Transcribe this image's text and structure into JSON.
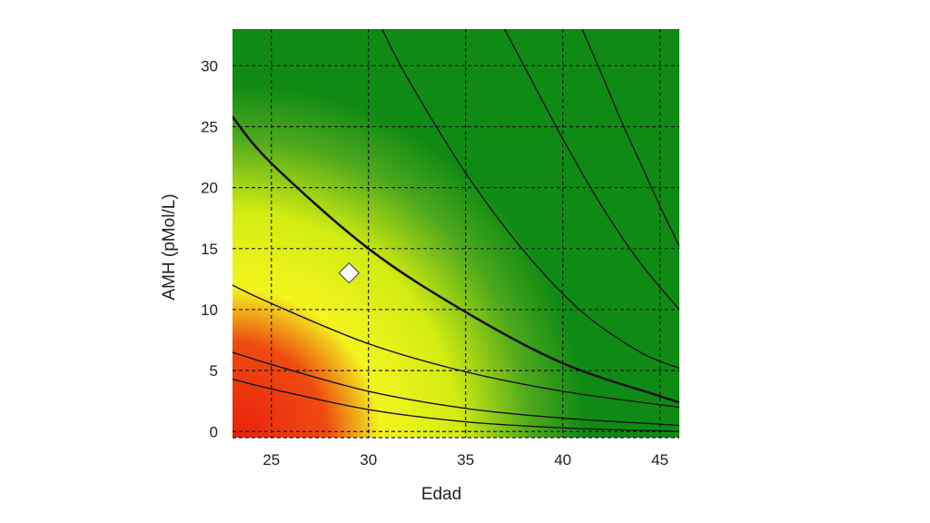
{
  "chart_data": {
    "type": "line",
    "title": "",
    "xlabel": "Edad",
    "ylabel": "AMH (pMol/L)",
    "xlim": [
      23,
      46
    ],
    "ylim": [
      -0.5,
      33
    ],
    "xticks": [
      25,
      30,
      35,
      40,
      45
    ],
    "yticks": [
      0,
      5,
      10,
      15,
      20,
      25,
      30
    ],
    "grid": true,
    "grid_style": "dashed",
    "background": "gradient",
    "background_colors": {
      "low": "#e8200c",
      "mid": "#f3f51e",
      "high": "#0f8a14"
    },
    "series": [
      {
        "x": [
          23,
          25,
          30,
          35,
          40,
          45,
          46
        ],
        "y": [
          4.3,
          3.5,
          1.8,
          0.8,
          0.3,
          0.05,
          0.0
        ]
      },
      {
        "x": [
          23,
          25,
          30,
          35,
          40,
          45,
          46
        ],
        "y": [
          6.5,
          5.5,
          3.3,
          1.9,
          1.1,
          0.6,
          0.5
        ]
      },
      {
        "x": [
          23,
          25,
          30,
          35,
          40,
          45,
          46
        ],
        "y": [
          12.0,
          10.5,
          7.2,
          4.9,
          3.3,
          2.2,
          2.0
        ]
      },
      {
        "x": [
          23,
          25,
          30,
          35,
          40,
          45,
          46
        ],
        "y": [
          25.8,
          22.0,
          15.0,
          9.8,
          5.6,
          2.9,
          2.4
        ]
      },
      {
        "x": [
          30.7,
          32,
          35,
          38,
          41,
          44,
          46
        ],
        "y": [
          33,
          29.0,
          21.2,
          14.8,
          9.8,
          6.5,
          5.2
        ]
      },
      {
        "x": [
          37.0,
          38,
          40,
          42,
          44,
          46
        ],
        "y": [
          33,
          30.0,
          24.0,
          18.5,
          13.8,
          10.0
        ]
      },
      {
        "x": [
          41.0,
          42,
          43,
          44,
          45,
          46
        ],
        "y": [
          33,
          29.3,
          25.5,
          22.0,
          18.5,
          15.2
        ]
      }
    ],
    "emphasized_series_index": 3,
    "points": [
      {
        "x": 29,
        "y": 13,
        "marker": "diamond",
        "color": "#ffffff"
      }
    ]
  }
}
